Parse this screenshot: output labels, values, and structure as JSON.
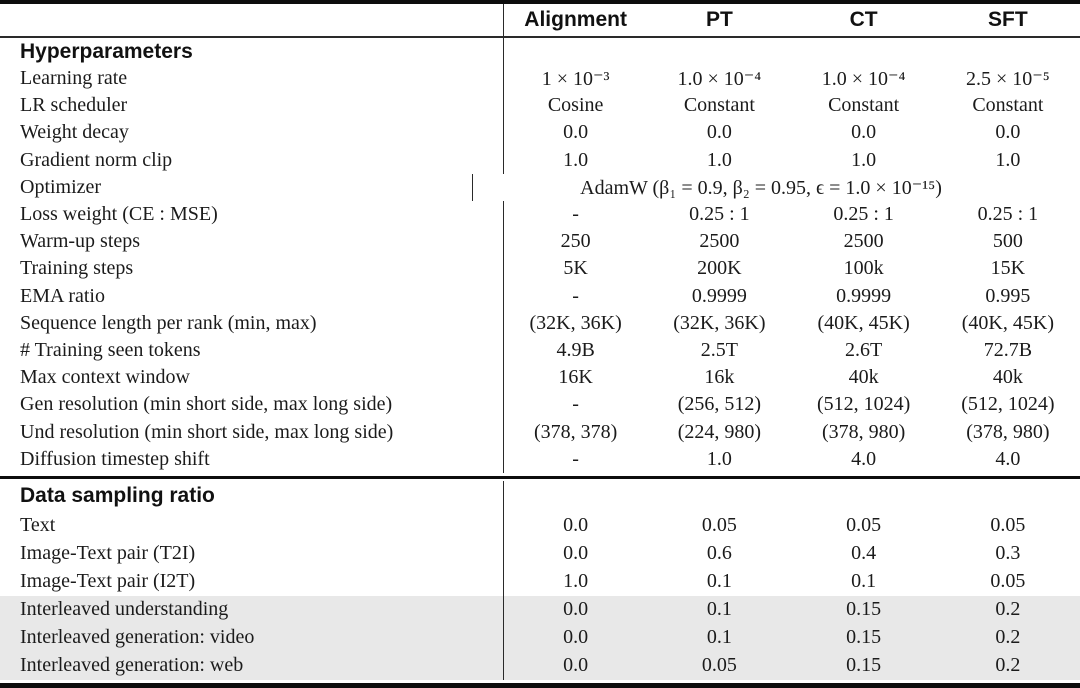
{
  "table": {
    "columns": [
      "Alignment",
      "PT",
      "CT",
      "SFT"
    ],
    "colors": {
      "shaded_row": "#e8e8e8",
      "rule": "#0d0d0d",
      "text": "#1b1b1b"
    },
    "sections": [
      {
        "title": "Hyperparameters",
        "rows": [
          {
            "label": "Learning rate",
            "values": [
              "1 × 10⁻³",
              "1.0 × 10⁻⁴",
              "1.0 × 10⁻⁴",
              "2.5 × 10⁻⁵"
            ]
          },
          {
            "label": "LR scheduler",
            "values": [
              "Cosine",
              "Constant",
              "Constant",
              "Constant"
            ]
          },
          {
            "label": "Weight decay",
            "values": [
              "0.0",
              "0.0",
              "0.0",
              "0.0"
            ]
          },
          {
            "label": "Gradient norm clip",
            "values": [
              "1.0",
              "1.0",
              "1.0",
              "1.0"
            ]
          },
          {
            "label": "Optimizer",
            "span": "AdamW (β₁ = 0.9, β₂ = 0.95, ϵ = 1.0 × 10⁻¹⁵)"
          },
          {
            "label": "Loss weight (CE : MSE)",
            "values": [
              "-",
              "0.25 : 1",
              "0.25 : 1",
              "0.25 : 1"
            ]
          },
          {
            "label": "Warm-up steps",
            "values": [
              "250",
              "2500",
              "2500",
              "500"
            ]
          },
          {
            "label": "Training steps",
            "values": [
              "5K",
              "200K",
              "100k",
              "15K"
            ]
          },
          {
            "label": "EMA ratio",
            "values": [
              "-",
              "0.9999",
              "0.9999",
              "0.995"
            ]
          },
          {
            "label": "Sequence length per rank (min, max)",
            "values": [
              "(32K, 36K)",
              "(32K, 36K)",
              "(40K, 45K)",
              "(40K, 45K)"
            ]
          },
          {
            "label": "# Training seen tokens",
            "values": [
              "4.9B",
              "2.5T",
              "2.6T",
              "72.7B"
            ]
          },
          {
            "label": "Max context window",
            "values": [
              "16K",
              "16k",
              "40k",
              "40k"
            ]
          },
          {
            "label": "Gen resolution (min short side, max long side)",
            "values": [
              "-",
              "(256, 512)",
              "(512, 1024)",
              "(512, 1024)"
            ]
          },
          {
            "label": "Und resolution (min short side, max long side)",
            "values": [
              "(378, 378)",
              "(224, 980)",
              "(378, 980)",
              "(378, 980)"
            ]
          },
          {
            "label": "Diffusion timestep shift",
            "values": [
              "-",
              "1.0",
              "4.0",
              "4.0"
            ]
          }
        ]
      },
      {
        "title": "Data sampling ratio",
        "rows": [
          {
            "label": "Text",
            "values": [
              "0.0",
              "0.05",
              "0.05",
              "0.05"
            ],
            "shaded": false
          },
          {
            "label": "Image-Text pair (T2I)",
            "values": [
              "0.0",
              "0.6",
              "0.4",
              "0.3"
            ],
            "shaded": false
          },
          {
            "label": "Image-Text pair (I2T)",
            "values": [
              "1.0",
              "0.1",
              "0.1",
              "0.05"
            ],
            "shaded": false
          },
          {
            "label": "Interleaved understanding",
            "values": [
              "0.0",
              "0.1",
              "0.15",
              "0.2"
            ],
            "shaded": true
          },
          {
            "label": "Interleaved generation: video",
            "values": [
              "0.0",
              "0.1",
              "0.15",
              "0.2"
            ],
            "shaded": true
          },
          {
            "label": "Interleaved generation: web",
            "values": [
              "0.0",
              "0.05",
              "0.15",
              "0.2"
            ],
            "shaded": true
          }
        ]
      }
    ]
  }
}
